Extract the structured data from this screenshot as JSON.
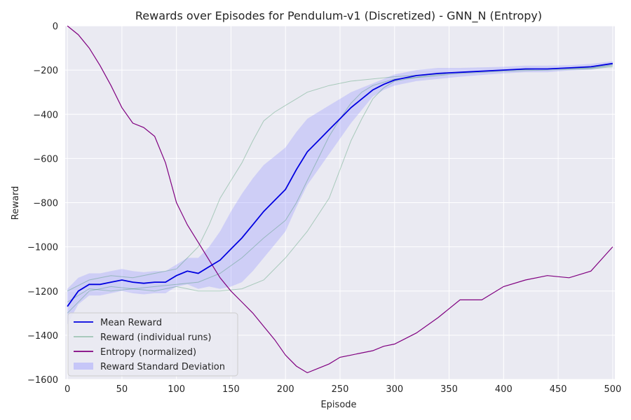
{
  "chart_data": {
    "type": "line",
    "title": "Rewards over Episodes for Pendulum-v1 (Discretized) - GNN_N (Entropy)",
    "xlabel": "Episode",
    "ylabel": "Reward",
    "xlim": [
      -2,
      502
    ],
    "ylim": [
      -1600,
      0
    ],
    "xticks": [
      0,
      50,
      100,
      150,
      200,
      250,
      300,
      350,
      400,
      450,
      500
    ],
    "yticks": [
      0,
      -200,
      -400,
      -600,
      -800,
      -1000,
      -1200,
      -1400,
      -1600
    ],
    "xtick_labels": [
      "0",
      "50",
      "100",
      "150",
      "200",
      "250",
      "300",
      "350",
      "400",
      "450",
      "500"
    ],
    "ytick_labels": [
      "0",
      "−200",
      "−400",
      "−600",
      "−800",
      "−1000",
      "−1200",
      "−1400",
      "−1600"
    ],
    "grid": true,
    "legend_position": "lower-left",
    "legend": [
      {
        "label": "Mean Reward",
        "kind": "line",
        "color": "#0000e0"
      },
      {
        "label": "Reward (individual runs)",
        "kind": "line",
        "color": "#2e8b57"
      },
      {
        "label": "Entropy (normalized)",
        "kind": "line",
        "color": "#800080"
      },
      {
        "label": "Reward Standard Deviation",
        "kind": "band",
        "color": "#9b9bff"
      }
    ],
    "series": [
      {
        "name": "Mean Reward",
        "color": "#0000e0",
        "x": [
          0,
          10,
          20,
          30,
          40,
          50,
          60,
          70,
          80,
          90,
          100,
          110,
          120,
          130,
          140,
          150,
          160,
          170,
          180,
          190,
          200,
          210,
          220,
          230,
          240,
          250,
          260,
          270,
          280,
          290,
          300,
          320,
          340,
          360,
          380,
          400,
          420,
          440,
          460,
          480,
          500
        ],
        "y": [
          -1270,
          -1200,
          -1170,
          -1170,
          -1160,
          -1150,
          -1160,
          -1165,
          -1160,
          -1160,
          -1130,
          -1110,
          -1120,
          -1090,
          -1060,
          -1010,
          -960,
          -900,
          -840,
          -790,
          -740,
          -650,
          -570,
          -520,
          -470,
          -420,
          -370,
          -330,
          -290,
          -265,
          -245,
          -225,
          -215,
          -210,
          -205,
          -200,
          -195,
          -195,
          -190,
          -185,
          -170
        ]
      },
      {
        "name": "Reward Standard Deviation",
        "color": "#9b9bff",
        "x": [
          0,
          10,
          20,
          30,
          40,
          50,
          60,
          70,
          80,
          90,
          100,
          110,
          120,
          130,
          140,
          150,
          160,
          170,
          180,
          190,
          200,
          210,
          220,
          230,
          240,
          250,
          260,
          270,
          280,
          290,
          300,
          320,
          340,
          360,
          380,
          400,
          420,
          440,
          460,
          480,
          500
        ],
        "upper": [
          -1190,
          -1140,
          -1120,
          -1120,
          -1110,
          -1100,
          -1110,
          -1115,
          -1110,
          -1110,
          -1080,
          -1050,
          -1050,
          -1000,
          -930,
          -840,
          -760,
          -690,
          -630,
          -590,
          -550,
          -480,
          -420,
          -390,
          -360,
          -330,
          -300,
          -280,
          -260,
          -240,
          -220,
          -200,
          -190,
          -190,
          -188,
          -185,
          -180,
          -180,
          -178,
          -172,
          -160
        ],
        "lower": [
          -1350,
          -1260,
          -1220,
          -1220,
          -1210,
          -1200,
          -1210,
          -1215,
          -1210,
          -1210,
          -1180,
          -1170,
          -1190,
          -1180,
          -1190,
          -1180,
          -1160,
          -1110,
          -1050,
          -990,
          -930,
          -820,
          -720,
          -650,
          -580,
          -510,
          -440,
          -380,
          -320,
          -290,
          -270,
          -250,
          -240,
          -230,
          -222,
          -215,
          -210,
          -210,
          -202,
          -198,
          -180
        ]
      },
      {
        "name": "Reward (individual runs)",
        "color": "#2e8b57",
        "runs": [
          {
            "x": [
              0,
              20,
              40,
              60,
              80,
              100,
              120,
              130,
              140,
              150,
              160,
              170,
              180,
              190,
              200,
              210,
              220,
              240,
              260,
              280,
              300,
              330,
              360,
              400,
              440,
              480,
              500
            ],
            "y": [
              -1200,
              -1150,
              -1130,
              -1140,
              -1120,
              -1100,
              -1000,
              -900,
              -780,
              -700,
              -620,
              -520,
              -430,
              -390,
              -360,
              -330,
              -300,
              -270,
              -250,
              -240,
              -230,
              -220,
              -210,
              -200,
              -195,
              -190,
              -180
            ]
          },
          {
            "x": [
              0,
              20,
              40,
              60,
              80,
              100,
              120,
              140,
              160,
              180,
              200,
              210,
              220,
              230,
              240,
              250,
              260,
              270,
              280,
              300,
              330,
              360,
              400,
              440,
              480,
              500
            ],
            "y": [
              -1300,
              -1200,
              -1180,
              -1190,
              -1180,
              -1170,
              -1160,
              -1120,
              -1050,
              -960,
              -880,
              -800,
              -700,
              -600,
              -500,
              -420,
              -350,
              -300,
              -270,
              -240,
              -230,
              -215,
              -205,
              -200,
              -195,
              -185
            ]
          },
          {
            "x": [
              0,
              20,
              40,
              60,
              80,
              100,
              120,
              140,
              160,
              180,
              200,
              220,
              240,
              250,
              260,
              270,
              280,
              290,
              300,
              330,
              360,
              400,
              440,
              480,
              500
            ],
            "y": [
              -1250,
              -1190,
              -1200,
              -1190,
              -1200,
              -1180,
              -1200,
              -1200,
              -1190,
              -1150,
              -1050,
              -930,
              -780,
              -650,
              -520,
              -420,
              -330,
              -280,
              -250,
              -225,
              -210,
              -200,
              -195,
              -190,
              -175
            ]
          }
        ]
      },
      {
        "name": "Entropy (normalized)",
        "color": "#800080",
        "x": [
          0,
          10,
          20,
          30,
          40,
          50,
          60,
          70,
          80,
          90,
          100,
          110,
          120,
          130,
          140,
          150,
          160,
          170,
          180,
          190,
          200,
          210,
          220,
          230,
          240,
          250,
          260,
          270,
          280,
          290,
          300,
          320,
          340,
          360,
          380,
          400,
          420,
          440,
          460,
          480,
          500
        ],
        "y": [
          0,
          -40,
          -100,
          -180,
          -270,
          -370,
          -440,
          -460,
          -500,
          -620,
          -800,
          -900,
          -980,
          -1060,
          -1140,
          -1200,
          -1250,
          -1300,
          -1360,
          -1420,
          -1490,
          -1540,
          -1570,
          -1550,
          -1530,
          -1500,
          -1490,
          -1480,
          -1470,
          -1450,
          -1440,
          -1390,
          -1320,
          -1240,
          -1240,
          -1180,
          -1150,
          -1130,
          -1140,
          -1110,
          -1000
        ]
      }
    ]
  }
}
